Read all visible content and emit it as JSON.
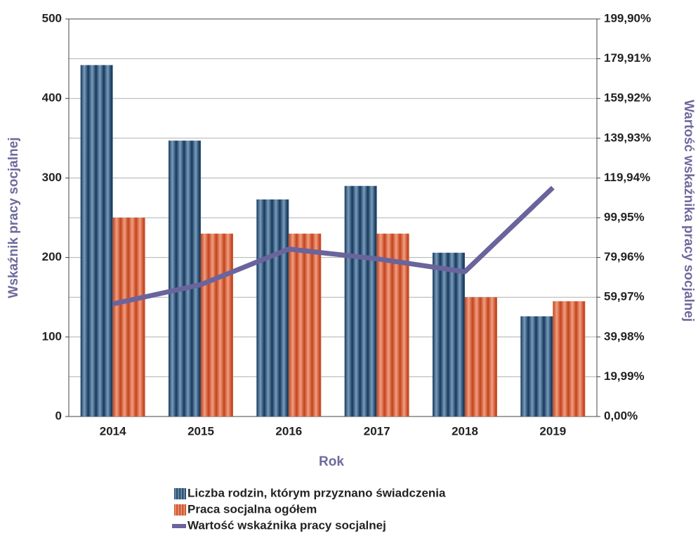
{
  "chart_data": {
    "type": "bar",
    "xlabel": "Rok",
    "ylabel": "Wskaźnik pracy socjalnej",
    "y2label": "Wartość wskaźnika pracy socjalnej",
    "categories": [
      "2014",
      "2015",
      "2016",
      "2017",
      "2018",
      "2019"
    ],
    "series": [
      {
        "name": "Liczba rodzin, którym przyznano świadczenia",
        "color": "#1f4a72",
        "values": [
          442,
          347,
          273,
          290,
          206,
          126
        ]
      },
      {
        "name": "Praca socjalna ogółem",
        "color": "#d4502a",
        "values": [
          250,
          230,
          230,
          230,
          150,
          145
        ]
      },
      {
        "name": "Wartość wskaźnika pracy socjalnej",
        "color": "#6a649c",
        "type": "line",
        "axis": "y2",
        "values": [
          56.6,
          66.3,
          84.2,
          79.3,
          72.8,
          115.1
        ]
      }
    ],
    "ylim": [
      0,
      500
    ],
    "yticks": [
      0,
      100,
      200,
      300,
      400,
      500
    ],
    "y2lim": [
      0,
      199.9
    ],
    "y2ticks": [
      {
        "value": 0,
        "label": "0,00%"
      },
      {
        "value": 19.99,
        "label": "19,99%"
      },
      {
        "value": 39.98,
        "label": "39,98%"
      },
      {
        "value": 59.97,
        "label": "59,97%"
      },
      {
        "value": 79.96,
        "label": "79,96%"
      },
      {
        "value": 99.95,
        "label": "99,95%"
      },
      {
        "value": 119.94,
        "label": "119,94%"
      },
      {
        "value": 139.93,
        "label": "139,93%"
      },
      {
        "value": 159.92,
        "label": "159,92%"
      },
      {
        "value": 179.91,
        "label": "179,91%"
      },
      {
        "value": 199.9,
        "label": "199,90%"
      }
    ],
    "grid": true,
    "legend": "bottom"
  }
}
